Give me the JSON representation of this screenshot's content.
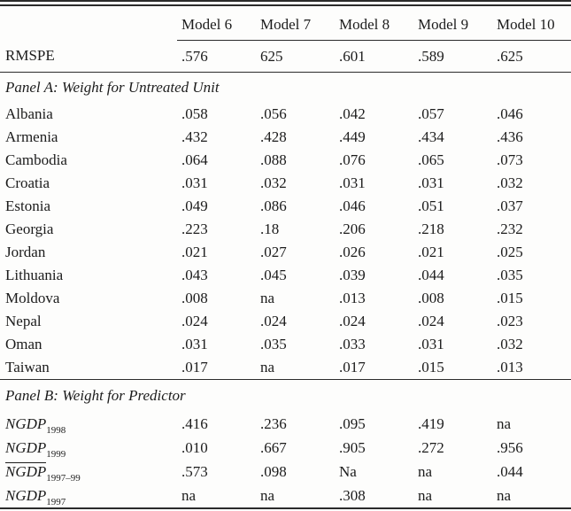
{
  "colors": {
    "background": "#fdfdfc",
    "text": "#1c1c1c",
    "rule": "#2b2b2b"
  },
  "table": {
    "column_headers": [
      "Model 6",
      "Model 7",
      "Model 8",
      "Model 9",
      "Model 10"
    ],
    "rmspe_row": {
      "label": "RMSPE",
      "values": [
        ".576",
        "625",
        ".601",
        ".589",
        ".625"
      ]
    },
    "panel_a": {
      "title": "Panel A: Weight for Untreated Unit",
      "rows": [
        {
          "label": "Albania",
          "values": [
            ".058",
            ".056",
            ".042",
            ".057",
            ".046"
          ]
        },
        {
          "label": "Armenia",
          "values": [
            ".432",
            ".428",
            ".449",
            ".434",
            ".436"
          ]
        },
        {
          "label": "Cambodia",
          "values": [
            ".064",
            ".088",
            ".076",
            ".065",
            ".073"
          ]
        },
        {
          "label": "Croatia",
          "values": [
            ".031",
            ".032",
            ".031",
            ".031",
            ".032"
          ]
        },
        {
          "label": "Estonia",
          "values": [
            ".049",
            ".086",
            ".046",
            ".051",
            ".037"
          ]
        },
        {
          "label": "Georgia",
          "values": [
            ".223",
            ".18",
            ".206",
            ".218",
            ".232"
          ]
        },
        {
          "label": "Jordan",
          "values": [
            ".021",
            ".027",
            ".026",
            ".021",
            ".025"
          ]
        },
        {
          "label": "Lithuania",
          "values": [
            ".043",
            ".045",
            ".039",
            ".044",
            ".035"
          ]
        },
        {
          "label": "Moldova",
          "values": [
            ".008",
            "na",
            ".013",
            ".008",
            ".015"
          ]
        },
        {
          "label": "Nepal",
          "values": [
            ".024",
            ".024",
            ".024",
            ".024",
            ".023"
          ]
        },
        {
          "label": "Oman",
          "values": [
            ".031",
            ".035",
            ".033",
            ".031",
            ".032"
          ]
        },
        {
          "label": "Taiwan",
          "values": [
            ".017",
            "na",
            ".017",
            ".015",
            ".013"
          ]
        }
      ]
    },
    "panel_b": {
      "title": "Panel B: Weight for Predictor",
      "rows": [
        {
          "label_base": "NGDP",
          "label_sub": "1998",
          "overline": false,
          "values": [
            ".416",
            ".236",
            ".095",
            ".419",
            "na"
          ]
        },
        {
          "label_base": "NGDP",
          "label_sub": "1999",
          "overline": false,
          "values": [
            ".010",
            ".667",
            ".905",
            ".272",
            ".956"
          ]
        },
        {
          "label_base": "NGDP",
          "label_sub": "1997–99",
          "overline": true,
          "values": [
            ".573",
            ".098",
            "Na",
            "na",
            ".044"
          ]
        },
        {
          "label_base": "NGDP",
          "label_sub": "1997",
          "overline": false,
          "values": [
            "na",
            "na",
            ".308",
            "na",
            "na"
          ]
        }
      ]
    }
  }
}
